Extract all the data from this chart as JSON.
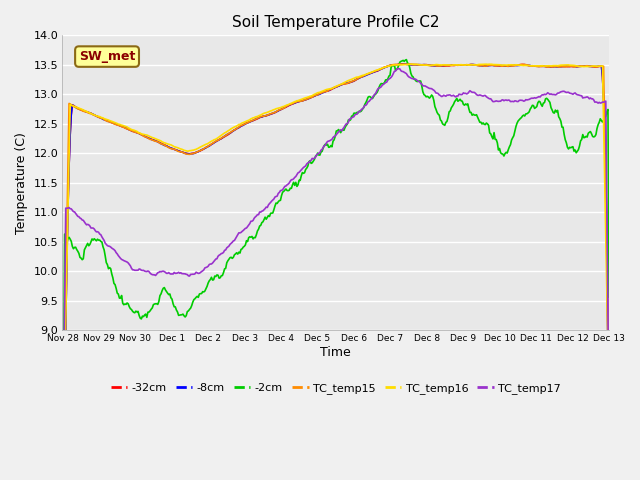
{
  "title": "Soil Temperature Profile C2",
  "xlabel": "Time",
  "ylabel": "Temperature (C)",
  "ylim": [
    9.0,
    14.0
  ],
  "yticks": [
    9.0,
    9.5,
    10.0,
    10.5,
    11.0,
    11.5,
    12.0,
    12.5,
    13.0,
    13.5,
    14.0
  ],
  "xtick_labels": [
    "Nov 28",
    "Nov 29",
    "Nov 30",
    "Dec 1",
    "Dec 2",
    "Dec 3",
    "Dec 4",
    "Dec 5",
    "Dec 6",
    "Dec 7",
    "Dec 8",
    "Dec 9",
    "Dec 10",
    "Dec 11",
    "Dec 12",
    "Dec 13"
  ],
  "fig_bg_color": "#f0f0f0",
  "plot_bg_color": "#e8e8e8",
  "grid_color": "#ffffff",
  "series": {
    "neg32cm": {
      "color": "#ff0000",
      "label": "-32cm",
      "linewidth": 1.2
    },
    "neg8cm": {
      "color": "#0000ff",
      "label": "-8cm",
      "linewidth": 1.2
    },
    "neg2cm": {
      "color": "#00cc00",
      "label": "-2cm",
      "linewidth": 1.2
    },
    "TC_temp15": {
      "color": "#ff8c00",
      "label": "TC_temp15",
      "linewidth": 1.2
    },
    "TC_temp16": {
      "color": "#ffdd00",
      "label": "TC_temp16",
      "linewidth": 1.2
    },
    "TC_temp17": {
      "color": "#9932cc",
      "label": "TC_temp17",
      "linewidth": 1.2
    }
  },
  "annotation_box": {
    "text": "SW_met",
    "facecolor": "#ffff99",
    "edgecolor": "#8b6914",
    "textcolor": "#8b0000",
    "fontsize": 9,
    "fontweight": "bold"
  }
}
